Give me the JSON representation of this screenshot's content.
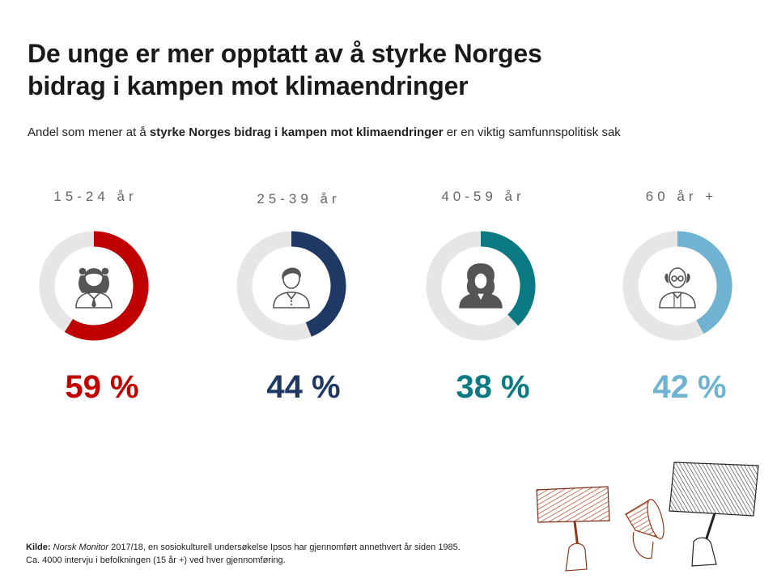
{
  "title": {
    "line1": "De unge er mer opptatt av å styrke Norges",
    "line2": "bidrag i kampen mot klimaendringer"
  },
  "subtitle": {
    "prefix": "Andel som mener at å ",
    "bold": "styrke Norges bidrag i kampen mot klimaendringer",
    "suffix": " er en viktig samfunnspolitisk sak"
  },
  "chart_data": {
    "type": "pie",
    "variant": "donut",
    "title": "De unge er mer opptatt av å styrke Norges bidrag i kampen mot klimaendringer",
    "categories": [
      "15-24 år",
      "25-39 år",
      "40-59 år",
      "60 år +"
    ],
    "values": [
      59,
      44,
      38,
      42
    ],
    "labels": [
      "59 %",
      "44 %",
      "38 %",
      "42 %"
    ],
    "unit": "%",
    "colors": [
      "#c00000",
      "#1f3864",
      "#0b7a82",
      "#6fb2d2"
    ],
    "track_color": "#e6e6e6",
    "icons": [
      "girl-icon",
      "young-man-icon",
      "woman-icon",
      "elderly-man-icon"
    ]
  },
  "source": {
    "label": "Kilde:",
    "italic": "Norsk Monitor",
    "line1": " 2017/18, en sosiokulturell undersøkelse Ipsos har gjennomført annethvert år siden 1985.",
    "line2": "Ca. 4000 intervju i befolkningen (15 år +) ved hver gjennomføring."
  }
}
